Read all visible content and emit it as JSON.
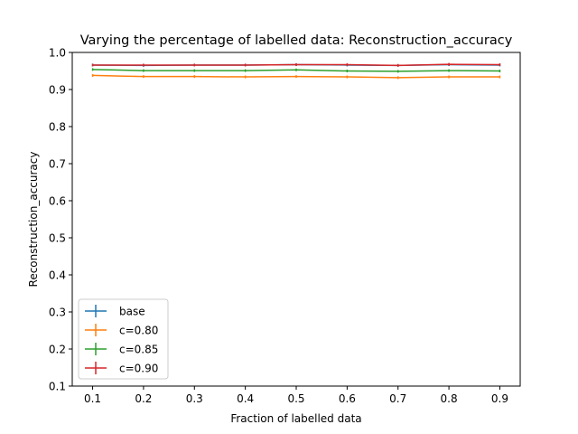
{
  "chart_data": {
    "type": "line",
    "title": "Varying the percentage of labelled data: Reconstruction_accuracy",
    "xlabel": "Fraction of labelled data",
    "ylabel": "Reconstruction_accuracy",
    "xlim": [
      0.06,
      0.94
    ],
    "ylim": [
      0.1,
      1.0
    ],
    "x": [
      0.1,
      0.2,
      0.3,
      0.4,
      0.5,
      0.6,
      0.7,
      0.8,
      0.9
    ],
    "xticks": [
      "0.1",
      "0.2",
      "0.3",
      "0.4",
      "0.5",
      "0.6",
      "0.7",
      "0.8",
      "0.9"
    ],
    "yticks": [
      "0.1",
      "0.2",
      "0.3",
      "0.4",
      "0.5",
      "0.6",
      "0.7",
      "0.8",
      "0.9",
      "1.0"
    ],
    "grid": false,
    "legend_position": "lower-left",
    "series": [
      {
        "name": "base",
        "color": "#1f77b4",
        "values": [
          0.966,
          0.965,
          0.966,
          0.966,
          0.967,
          0.966,
          0.965,
          0.967,
          0.966
        ]
      },
      {
        "name": "c=0.80",
        "color": "#ff7f0e",
        "values": [
          0.938,
          0.935,
          0.935,
          0.934,
          0.935,
          0.934,
          0.932,
          0.934,
          0.934
        ]
      },
      {
        "name": "c=0.85",
        "color": "#2ca02c",
        "values": [
          0.954,
          0.951,
          0.951,
          0.951,
          0.953,
          0.95,
          0.949,
          0.951,
          0.95
        ]
      },
      {
        "name": "c=0.90",
        "color": "#d62728",
        "values": [
          0.966,
          0.966,
          0.966,
          0.966,
          0.967,
          0.967,
          0.965,
          0.968,
          0.967
        ]
      }
    ]
  }
}
